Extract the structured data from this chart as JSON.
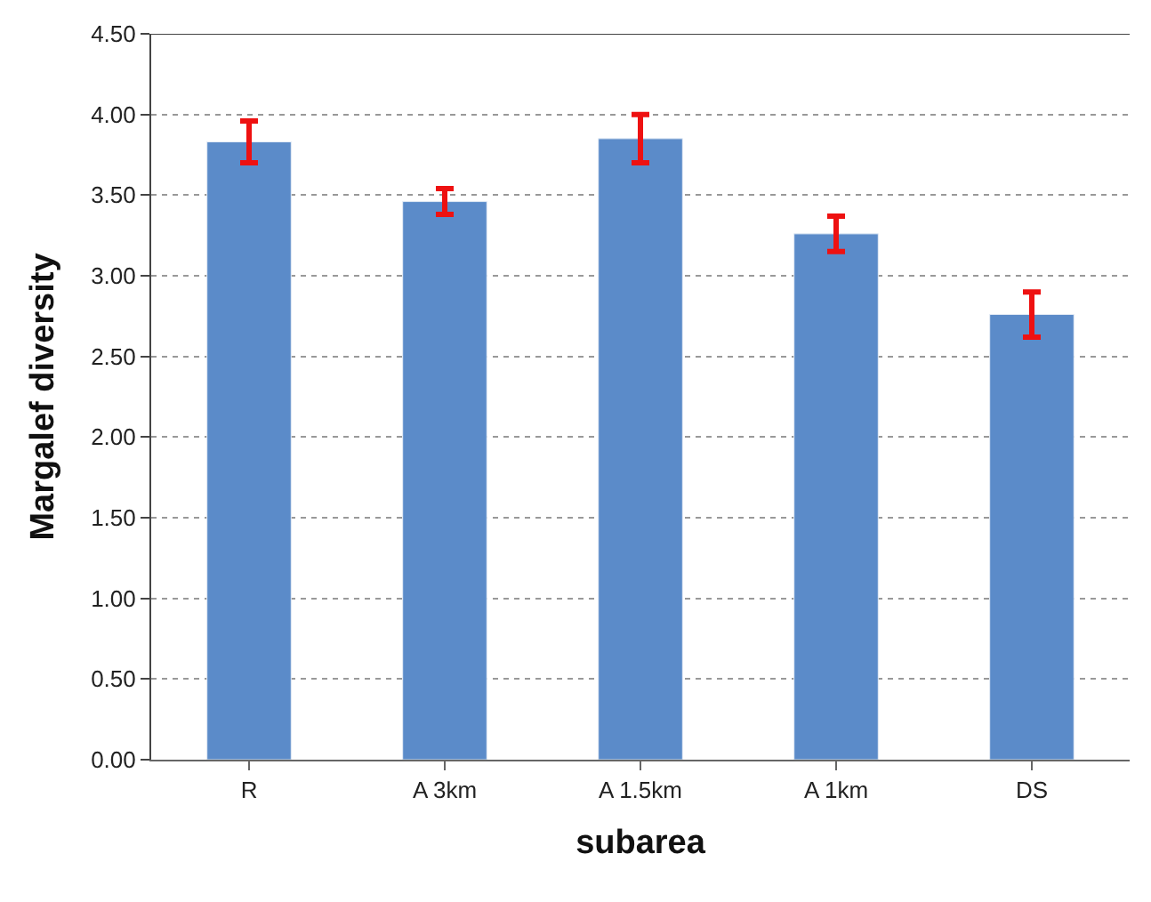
{
  "chart_data": {
    "type": "bar",
    "xlabel": "subarea",
    "ylabel": "Margalef diversity",
    "categories": [
      "R",
      "A 3km",
      "A 1.5km",
      "A 1km",
      "DS"
    ],
    "values": [
      3.83,
      3.46,
      3.85,
      3.26,
      2.76
    ],
    "errors": [
      0.13,
      0.08,
      0.15,
      0.11,
      0.14
    ],
    "color": "#5b8bc9",
    "ylim": [
      0,
      4.5
    ],
    "yticks": [
      {
        "value": 0,
        "label": "0.00"
      },
      {
        "value": 0.5,
        "label": "0.50"
      },
      {
        "value": 1,
        "label": "1.00"
      },
      {
        "value": 1.5,
        "label": "1.50"
      },
      {
        "value": 2,
        "label": "2.00"
      },
      {
        "value": 2.5,
        "label": "2.50"
      },
      {
        "value": 3,
        "label": "3.00"
      },
      {
        "value": 3.5,
        "label": "3.50"
      },
      {
        "value": 4,
        "label": "4.00"
      },
      {
        "value": 4.5,
        "label": "4.50"
      }
    ],
    "grid": "y"
  }
}
